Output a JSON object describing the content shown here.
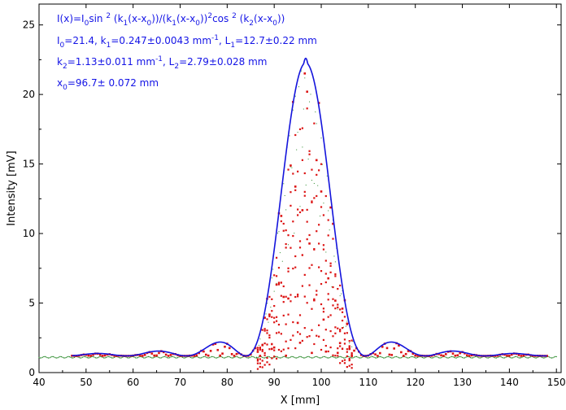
{
  "chart_data": {
    "type": "scatter",
    "xlabel": "X [mm]",
    "ylabel": "Intensity [mV]",
    "xlim": [
      40,
      151
    ],
    "ylim": [
      0,
      26.5
    ],
    "xticks": [
      40,
      50,
      60,
      70,
      80,
      90,
      100,
      110,
      120,
      130,
      140,
      150
    ],
    "yticks": [
      0,
      5,
      10,
      15,
      20,
      25
    ],
    "grid": false,
    "annotations": [
      {
        "segments": [
          {
            "t": "I(x)=I"
          },
          {
            "t": "0",
            "sub": true
          },
          {
            "t": "sin "
          },
          {
            "t": "2",
            "sup": true
          },
          {
            "t": " (k"
          },
          {
            "t": "1",
            "sub": true
          },
          {
            "t": "(x-x"
          },
          {
            "t": "0",
            "sub": true
          },
          {
            "t": "))/(k"
          },
          {
            "t": "1",
            "sub": true
          },
          {
            "t": "(x-x"
          },
          {
            "t": "0",
            "sub": true
          },
          {
            "t": "))"
          },
          {
            "t": "2",
            "sup": true
          },
          {
            "t": "cos "
          },
          {
            "t": "2",
            "sup": true
          },
          {
            "t": " (k"
          },
          {
            "t": "2",
            "sub": true
          },
          {
            "t": "(x-x"
          },
          {
            "t": "0",
            "sub": true
          },
          {
            "t": "))"
          }
        ]
      },
      {
        "segments": [
          {
            "t": "I"
          },
          {
            "t": "0",
            "sub": true
          },
          {
            "t": "=21.4,  k"
          },
          {
            "t": "1",
            "sub": true
          },
          {
            "t": "=0.247±0.0043 mm"
          },
          {
            "t": "-1",
            "sup": true
          },
          {
            "t": ",   L"
          },
          {
            "t": "1",
            "sub": true
          },
          {
            "t": "=12.7±0.22 mm"
          }
        ]
      },
      {
        "segments": [
          {
            "t": "k"
          },
          {
            "t": "2",
            "sub": true
          },
          {
            "t": "=1.13±0.011 mm"
          },
          {
            "t": "-1",
            "sup": true
          },
          {
            "t": ",   L"
          },
          {
            "t": "2",
            "sub": true
          },
          {
            "t": "=2.79±0.028 mm"
          }
        ]
      },
      {
        "segments": [
          {
            "t": "x"
          },
          {
            "t": "0",
            "sub": true
          },
          {
            "t": "=96.7±   0.072 mm"
          }
        ]
      }
    ],
    "series": [
      {
        "kind": "fit-line",
        "color": "#1414dc",
        "formula": "I0*sin^2(k1(x-x0))/(k1(x-x0))^2*cos^2(k2(x-x0)) + offset",
        "params": {
          "I0": 21.4,
          "k1": 0.247,
          "k2": 1.13,
          "x0": 96.7,
          "offset": 1.2
        },
        "x_range": [
          47,
          148
        ]
      },
      {
        "kind": "measured-points",
        "color": "#dc1414",
        "x_range": [
          47,
          148
        ],
        "step": 0.5
      },
      {
        "kind": "background-points",
        "color": "#2a8a2a",
        "x_range": [
          40,
          150
        ],
        "step": 0.25
      }
    ]
  }
}
